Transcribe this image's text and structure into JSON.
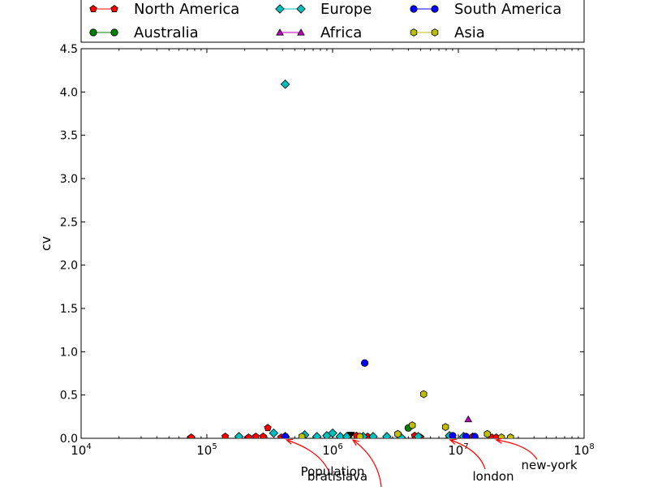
{
  "chart_data": {
    "type": "scatter",
    "title": "",
    "xlabel": "Population",
    "ylabel": "cv",
    "xscale": "log",
    "xlim": [
      10000,
      100000000
    ],
    "ylim": [
      0,
      4.5
    ],
    "x_ticks": [
      {
        "value": 10000,
        "base": "10",
        "exp": "4"
      },
      {
        "value": 100000,
        "base": "10",
        "exp": "5"
      },
      {
        "value": 1000000,
        "base": "10",
        "exp": "6"
      },
      {
        "value": 10000000,
        "base": "10",
        "exp": "7"
      },
      {
        "value": 100000000,
        "base": "10",
        "exp": "8"
      }
    ],
    "y_ticks": [
      "0.0",
      "0.5",
      "1.0",
      "1.5",
      "2.0",
      "2.5",
      "3.0",
      "3.5",
      "4.0",
      "4.5"
    ],
    "grid": false,
    "legend_position": "top",
    "series": [
      {
        "name": "North America",
        "marker": "pentagon",
        "color": "#ff0000",
        "x": [
          75000,
          140000,
          215000,
          245000,
          280000,
          305000,
          390000,
          1300000,
          1550000,
          1900000,
          2700000,
          4500000,
          5000000,
          9000000,
          13000000,
          18500000,
          20000000
        ],
        "y": [
          0.01,
          0.02,
          0.01,
          0.02,
          0.02,
          0.12,
          0.01,
          0.02,
          0.03,
          0.02,
          0.01,
          0.03,
          0.01,
          0.02,
          0.02,
          0.01,
          0.01
        ]
      },
      {
        "name": "Europe",
        "marker": "diamond",
        "color": "#00bfbf",
        "x": [
          180000,
          340000,
          420000,
          600000,
          750000,
          900000,
          1000000,
          1150000,
          1300000,
          1750000,
          2100000,
          2700000,
          3500000,
          4800000,
          8500000,
          11000000,
          420000
        ],
        "y": [
          0.02,
          0.06,
          0.02,
          0.04,
          0.02,
          0.03,
          0.06,
          0.02,
          0.02,
          0.02,
          0.02,
          0.02,
          0.01,
          0.02,
          0.03,
          0.02,
          4.09
        ]
      },
      {
        "name": "South America",
        "marker": "circle",
        "color": "#0000ff",
        "x": [
          1800000,
          420000,
          9000000,
          11500000,
          13500000
        ],
        "y": [
          0.87,
          0.02,
          0.03,
          0.02,
          0.02
        ]
      },
      {
        "name": "Australia",
        "marker": "circle",
        "color": "#008000",
        "x": [
          4000000
        ],
        "y": [
          0.12
        ]
      },
      {
        "name": "Africa",
        "marker": "triangle",
        "color": "#bf00bf",
        "x": [
          12000000
        ],
        "y": [
          0.22
        ]
      },
      {
        "name": "Asia",
        "marker": "hexagon",
        "color": "#bfbf00",
        "x": [
          570000,
          3300000,
          4300000,
          5300000,
          7900000,
          17000000,
          26000000,
          22000000,
          1650000
        ],
        "y": [
          0.02,
          0.05,
          0.15,
          0.51,
          0.13,
          0.05,
          0.01,
          0.01,
          0.02
        ]
      }
    ],
    "extra_points": [
      {
        "marker": "triangle-down",
        "color": "#000000",
        "x": 1400000,
        "y": 0.04
      }
    ],
    "annotations": [
      {
        "text": "bratislava",
        "x": 430000,
        "y": 0.0
      },
      {
        "text": "",
        "x": 1450000,
        "y": 0.0
      },
      {
        "text": "london",
        "x": 8600000,
        "y": 0.0
      },
      {
        "text": "new-york",
        "x": 20000000,
        "y": 0.0
      }
    ]
  }
}
